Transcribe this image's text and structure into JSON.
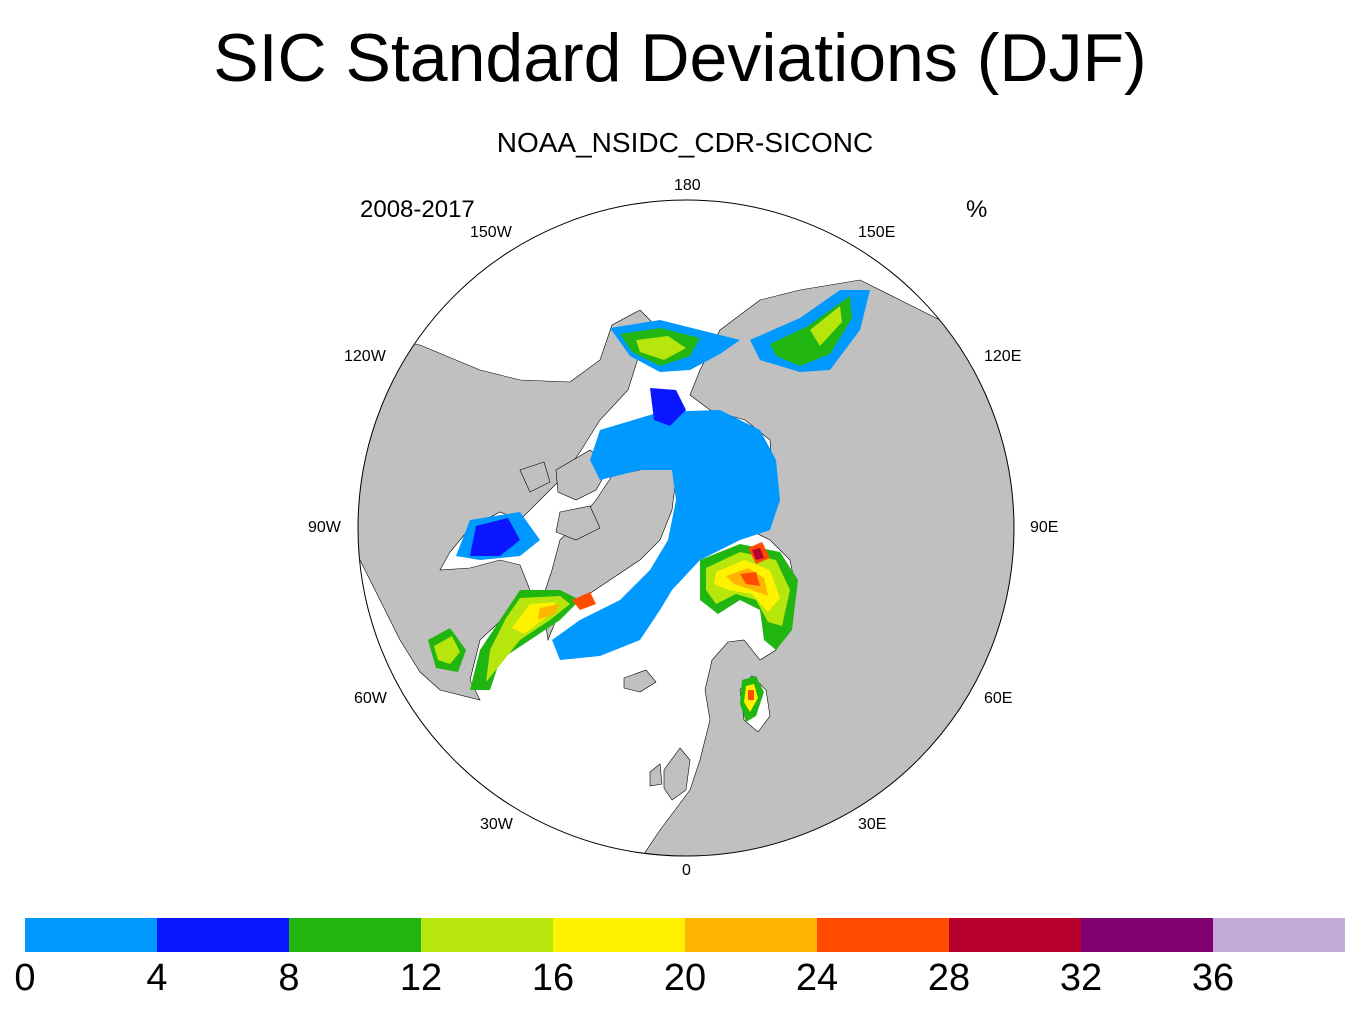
{
  "title": "SIC Standard Deviations (DJF)",
  "subtitle": "NOAA_NSIDC_CDR-SICONC",
  "left_label": "2008-2017",
  "right_label": "%",
  "longitude_labels": {
    "lon_180": "180",
    "lon_150e": "150E",
    "lon_120e": "120E",
    "lon_90e": "90E",
    "lon_60e": "60E",
    "lon_30e": "30E",
    "lon_0": "0",
    "lon_30w": "30W",
    "lon_60w": "60W",
    "lon_90w": "90W",
    "lon_120w": "120W",
    "lon_150w": "150W"
  },
  "colors": {
    "land": "#c0c0c0",
    "ocean": "#ffffff",
    "outline": "#000000"
  },
  "colorbar": {
    "levels": [
      "0",
      "4",
      "8",
      "12",
      "16",
      "20",
      "24",
      "28",
      "32",
      "36"
    ],
    "colors": [
      "#0099ff",
      "#0a16ff",
      "#21b512",
      "#b6e60c",
      "#fff200",
      "#ffb400",
      "#ff4c00",
      "#b8002e",
      "#800070",
      "#c4aad6"
    ]
  }
}
